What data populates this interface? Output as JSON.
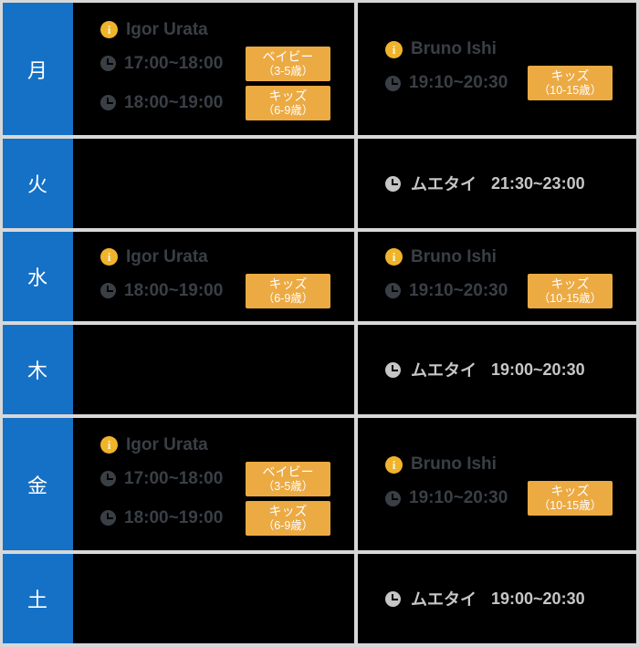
{
  "colors": {
    "frame": "#d8d8d8",
    "cell_background": "#000000",
    "day_background": "#1571c5",
    "badge_background": "#ecaa43",
    "info_icon": "#f0b42c",
    "dark_text": "#3a3f46",
    "light_text": "#c6c6c6",
    "day_text": "#ffffff"
  },
  "rows": [
    {
      "day": "月",
      "cells": [
        {
          "kind": "instructor",
          "instructor": "Igor Urata",
          "sessions": [
            {
              "time": "17:00~18:00",
              "badge_line1": "ベイビー",
              "badge_line2": "（3-5歳）"
            },
            {
              "time": "18:00~19:00",
              "badge_line1": "キッズ",
              "badge_line2": "（6-9歳）"
            }
          ]
        },
        {
          "kind": "instructor",
          "instructor": "Bruno Ishi",
          "sessions": [
            {
              "time": "19:10~20:30",
              "badge_line1": "キッズ",
              "badge_line2": "（10-15歳）"
            }
          ]
        }
      ]
    },
    {
      "day": "火",
      "cells": [
        {
          "kind": "empty"
        },
        {
          "kind": "class",
          "label": "ムエタイ",
          "time": "21:30~23:00"
        }
      ]
    },
    {
      "day": "水",
      "cells": [
        {
          "kind": "instructor",
          "instructor": "Igor Urata",
          "sessions": [
            {
              "time": "18:00~19:00",
              "badge_line1": "キッズ",
              "badge_line2": "（6-9歳）"
            }
          ]
        },
        {
          "kind": "instructor",
          "instructor": "Bruno Ishi",
          "sessions": [
            {
              "time": "19:10~20:30",
              "badge_line1": "キッズ",
              "badge_line2": "（10-15歳）"
            }
          ]
        }
      ]
    },
    {
      "day": "木",
      "cells": [
        {
          "kind": "empty"
        },
        {
          "kind": "class",
          "label": "ムエタイ",
          "time": "19:00~20:30"
        }
      ]
    },
    {
      "day": "金",
      "cells": [
        {
          "kind": "instructor",
          "instructor": "Igor Urata",
          "sessions": [
            {
              "time": "17:00~18:00",
              "badge_line1": "ベイビー",
              "badge_line2": "（3-5歳）"
            },
            {
              "time": "18:00~19:00",
              "badge_line1": "キッズ",
              "badge_line2": "（6-9歳）"
            }
          ]
        },
        {
          "kind": "instructor",
          "instructor": "Bruno Ishi",
          "sessions": [
            {
              "time": "19:10~20:30",
              "badge_line1": "キッズ",
              "badge_line2": "（10-15歳）"
            }
          ]
        }
      ]
    },
    {
      "day": "土",
      "cells": [
        {
          "kind": "empty"
        },
        {
          "kind": "class",
          "label": "ムエタイ",
          "time": "19:00~20:30"
        }
      ]
    }
  ]
}
